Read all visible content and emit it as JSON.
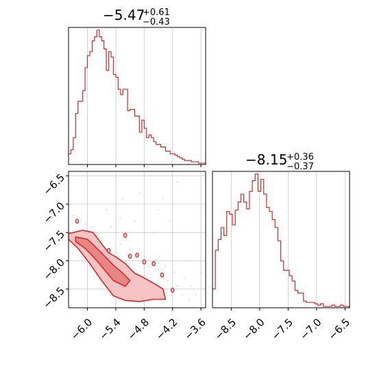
{
  "colors": {
    "line": "#d62728",
    "fill_outer": "#f7c3c3",
    "fill_inner": "#e88585",
    "grid": "#c8c8c8",
    "scatter": "#f4a9a9"
  },
  "chart_data": [
    {
      "type": "histogram",
      "panel": "top-left",
      "title": {
        "main": "−5.47",
        "sup": "+0.61",
        "sub": "−0.43"
      },
      "xlim": [
        -6.4,
        -3.5
      ],
      "ylim": [
        0,
        1.02
      ],
      "grid": true,
      "xticks": [
        -6.0,
        -5.4,
        -4.8,
        -4.2,
        -3.6
      ],
      "step_x": [
        -6.4,
        -6.35,
        -6.3,
        -6.25,
        -6.2,
        -6.15,
        -6.1,
        -6.05,
        -6.0,
        -5.95,
        -5.9,
        -5.85,
        -5.8,
        -5.75,
        -5.7,
        -5.65,
        -5.6,
        -5.55,
        -5.5,
        -5.45,
        -5.4,
        -5.35,
        -5.3,
        -5.25,
        -5.2,
        -5.15,
        -5.1,
        -5.05,
        -5.0,
        -4.95,
        -4.9,
        -4.85,
        -4.8,
        -4.75,
        -4.7,
        -4.65,
        -4.6,
        -4.55,
        -4.5,
        -4.45,
        -4.4,
        -4.35,
        -4.3,
        -4.25,
        -4.2,
        -4.15,
        -4.1,
        -4.05,
        -4.0,
        -3.95,
        -3.9,
        -3.85,
        -3.8,
        -3.75,
        -3.7,
        -3.65,
        -3.6,
        -3.55,
        -3.5
      ],
      "step_y": [
        0.08,
        0.11,
        0.2,
        0.38,
        0.47,
        0.47,
        0.55,
        0.72,
        0.81,
        0.84,
        0.92,
        0.95,
        1.0,
        0.95,
        0.92,
        0.86,
        0.7,
        0.84,
        0.8,
        0.67,
        0.65,
        0.56,
        0.52,
        0.56,
        0.56,
        0.4,
        0.41,
        0.41,
        0.36,
        0.36,
        0.24,
        0.33,
        0.27,
        0.2,
        0.22,
        0.2,
        0.17,
        0.15,
        0.15,
        0.13,
        0.13,
        0.1,
        0.1,
        0.08,
        0.08,
        0.07,
        0.06,
        0.05,
        0.04,
        0.03,
        0.03,
        0.03,
        0.02,
        0.02,
        0.02,
        0.01,
        0.01,
        0.01,
        0.0
      ]
    },
    {
      "type": "contour",
      "panel": "bottom-left",
      "xlim": [
        -6.4,
        -3.5
      ],
      "ylim": [
        -8.83,
        -6.42
      ],
      "grid": true,
      "xticks": [
        "−6.0",
        "−5.4",
        "−4.8",
        "−4.2",
        "−3.6"
      ],
      "xtick_values": [
        -6.0,
        -5.4,
        -4.8,
        -4.2,
        -3.6
      ],
      "yticks": [
        "−6.5",
        "−7.0",
        "−7.5",
        "−8.0",
        "−8.5"
      ],
      "ytick_values": [
        -6.5,
        -7.0,
        -7.5,
        -8.0,
        -8.5
      ],
      "contour_outer": [
        [
          -6.4,
          -7.52
        ],
        [
          -6.1,
          -7.46
        ],
        [
          -5.88,
          -7.5
        ],
        [
          -5.7,
          -7.7
        ],
        [
          -5.55,
          -7.86
        ],
        [
          -5.4,
          -7.93
        ],
        [
          -5.2,
          -8.05
        ],
        [
          -5.0,
          -8.22
        ],
        [
          -4.85,
          -8.28
        ],
        [
          -4.7,
          -8.35
        ],
        [
          -4.55,
          -8.42
        ],
        [
          -4.4,
          -8.5
        ],
        [
          -4.35,
          -8.68
        ],
        [
          -4.6,
          -8.68
        ],
        [
          -4.9,
          -8.72
        ],
        [
          -5.2,
          -8.7
        ],
        [
          -5.45,
          -8.62
        ],
        [
          -5.7,
          -8.35
        ],
        [
          -5.95,
          -8.05
        ],
        [
          -6.2,
          -7.78
        ],
        [
          -6.4,
          -7.62
        ]
      ],
      "contour_inner": [
        [
          -6.25,
          -7.58
        ],
        [
          -6.0,
          -7.62
        ],
        [
          -5.8,
          -7.78
        ],
        [
          -5.6,
          -7.95
        ],
        [
          -5.45,
          -8.08
        ],
        [
          -5.25,
          -8.22
        ],
        [
          -5.1,
          -8.35
        ],
        [
          -5.2,
          -8.45
        ],
        [
          -5.45,
          -8.35
        ],
        [
          -5.65,
          -8.15
        ],
        [
          -5.85,
          -7.95
        ],
        [
          -6.05,
          -7.78
        ],
        [
          -6.25,
          -7.66
        ]
      ],
      "blobs": [
        [
          -6.22,
          -7.3
        ],
        [
          -5.55,
          -7.82
        ],
        [
          -5.2,
          -7.55
        ],
        [
          -4.95,
          -7.9
        ],
        [
          -4.8,
          -8.02
        ],
        [
          -5.1,
          -7.92
        ],
        [
          -4.2,
          -8.52
        ],
        [
          -4.6,
          -8.05
        ],
        [
          -4.42,
          -8.25
        ]
      ],
      "scatter": [
        [
          -6.3,
          -7.2
        ],
        [
          -6.2,
          -7.75
        ],
        [
          -5.9,
          -7.4
        ],
        [
          -5.7,
          -7.6
        ],
        [
          -5.5,
          -7.4
        ],
        [
          -5.3,
          -7.7
        ],
        [
          -5.1,
          -7.8
        ],
        [
          -4.9,
          -8.0
        ],
        [
          -4.7,
          -8.1
        ],
        [
          -4.5,
          -8.15
        ],
        [
          -4.3,
          -8.35
        ],
        [
          -4.1,
          -8.45
        ],
        [
          -4.0,
          -8.6
        ],
        [
          -3.95,
          -8.3
        ],
        [
          -3.8,
          -8.45
        ],
        [
          -3.7,
          -8.6
        ],
        [
          -4.9,
          -6.8
        ],
        [
          -5.25,
          -6.9
        ],
        [
          -4.5,
          -7.1
        ],
        [
          -4.25,
          -7.3
        ],
        [
          -4.6,
          -7.5
        ],
        [
          -3.9,
          -8.0
        ],
        [
          -4.2,
          -7.9
        ],
        [
          -5.3,
          -7.25
        ],
        [
          -5.6,
          -7.1
        ],
        [
          -5.0,
          -7.3
        ],
        [
          -4.1,
          -6.6
        ],
        [
          -4.4,
          -6.9
        ],
        [
          -3.6,
          -8.2
        ],
        [
          -4.8,
          -8.5
        ],
        [
          -5.0,
          -8.55
        ],
        [
          -4.35,
          -8.1
        ],
        [
          -4.15,
          -8.2
        ],
        [
          -3.85,
          -8.7
        ],
        [
          -5.8,
          -7.55
        ],
        [
          -6.05,
          -7.35
        ]
      ]
    },
    {
      "type": "histogram",
      "panel": "bottom-right",
      "title": {
        "main": "−8.15",
        "sup": "+0.36",
        "sub": "−0.37"
      },
      "xlim": [
        -8.83,
        -6.42
      ],
      "ylim": [
        0,
        1.02
      ],
      "grid": true,
      "xticks": [
        "−8.5",
        "−8.0",
        "−7.5",
        "−7.0",
        "−6.5"
      ],
      "xtick_values": [
        -8.5,
        -8.0,
        -7.5,
        -7.0,
        -6.5
      ],
      "step_x": [
        -8.83,
        -8.78,
        -8.73,
        -8.68,
        -8.63,
        -8.58,
        -8.53,
        -8.48,
        -8.43,
        -8.38,
        -8.33,
        -8.28,
        -8.23,
        -8.18,
        -8.13,
        -8.08,
        -8.03,
        -7.98,
        -7.93,
        -7.88,
        -7.83,
        -7.78,
        -7.73,
        -7.68,
        -7.63,
        -7.58,
        -7.53,
        -7.48,
        -7.43,
        -7.38,
        -7.33,
        -7.28,
        -7.23,
        -7.18,
        -7.13,
        -7.08,
        -7.03,
        -6.98,
        -6.93,
        -6.88,
        -6.83,
        -6.78,
        -6.73,
        -6.68,
        -6.63,
        -6.58,
        -6.53,
        -6.48,
        -6.42
      ],
      "step_y": [
        0.14,
        0.43,
        0.51,
        0.6,
        0.54,
        0.72,
        0.7,
        0.62,
        0.73,
        0.79,
        0.85,
        0.79,
        0.74,
        0.87,
        0.95,
        1.0,
        0.87,
        0.96,
        0.85,
        0.75,
        0.72,
        0.66,
        0.6,
        0.5,
        0.35,
        0.28,
        0.28,
        0.24,
        0.2,
        0.13,
        0.11,
        0.11,
        0.05,
        0.04,
        0.04,
        0.04,
        0.03,
        0.02,
        0.03,
        0.01,
        0.01,
        0.01,
        0.02,
        0.01,
        0.01,
        0.02,
        0.01,
        0.01,
        0.0
      ]
    }
  ]
}
